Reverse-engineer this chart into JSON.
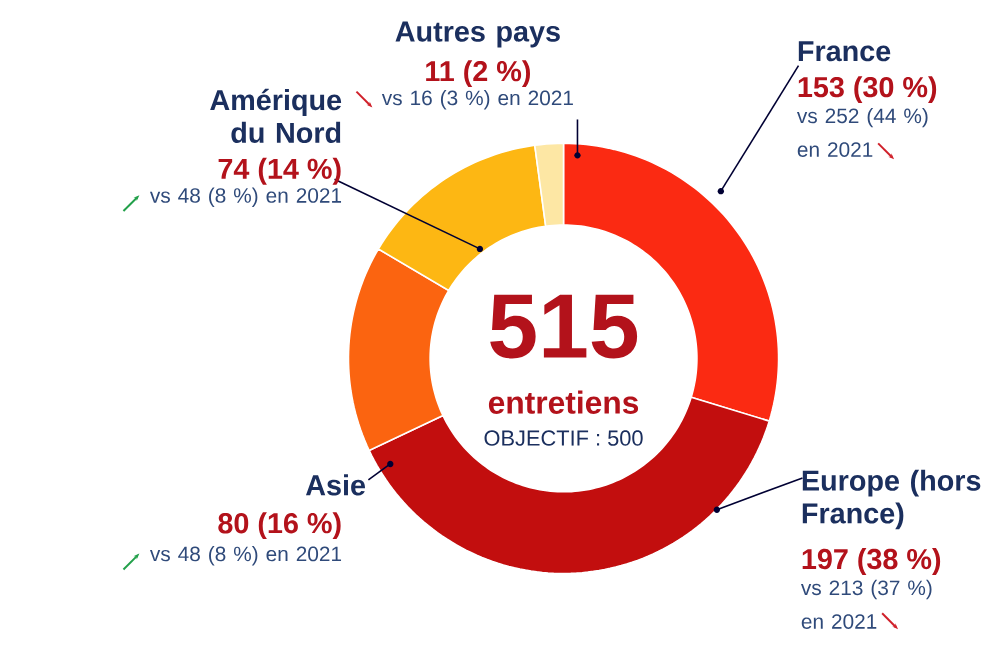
{
  "chart_data": {
    "type": "donut",
    "categories": [
      "France",
      "Europe (hors France)",
      "Asie",
      "Amérique du Nord",
      "Autres pays"
    ],
    "values": [
      153,
      197,
      80,
      74,
      11
    ],
    "colors": [
      "#fb2a12",
      "#c20e0e",
      "#fb6410",
      "#fdb713",
      "#fde7a4"
    ],
    "value_labels": [
      "153 (30 %)",
      "197 (38 %)",
      "80 (16 %)",
      "74 (14 %)",
      "11 (2 %)"
    ],
    "annotations": [
      "515",
      "entretiens",
      "OBJECTIF : 500",
      "vs 252 (44 %) en 2021",
      "vs 213 (37 %) en 2021",
      "vs 48 (8 %) en 2021",
      "vs 48 (8 %) en 2021",
      "vs 16 (3 %) en 2021"
    ]
  }
}
